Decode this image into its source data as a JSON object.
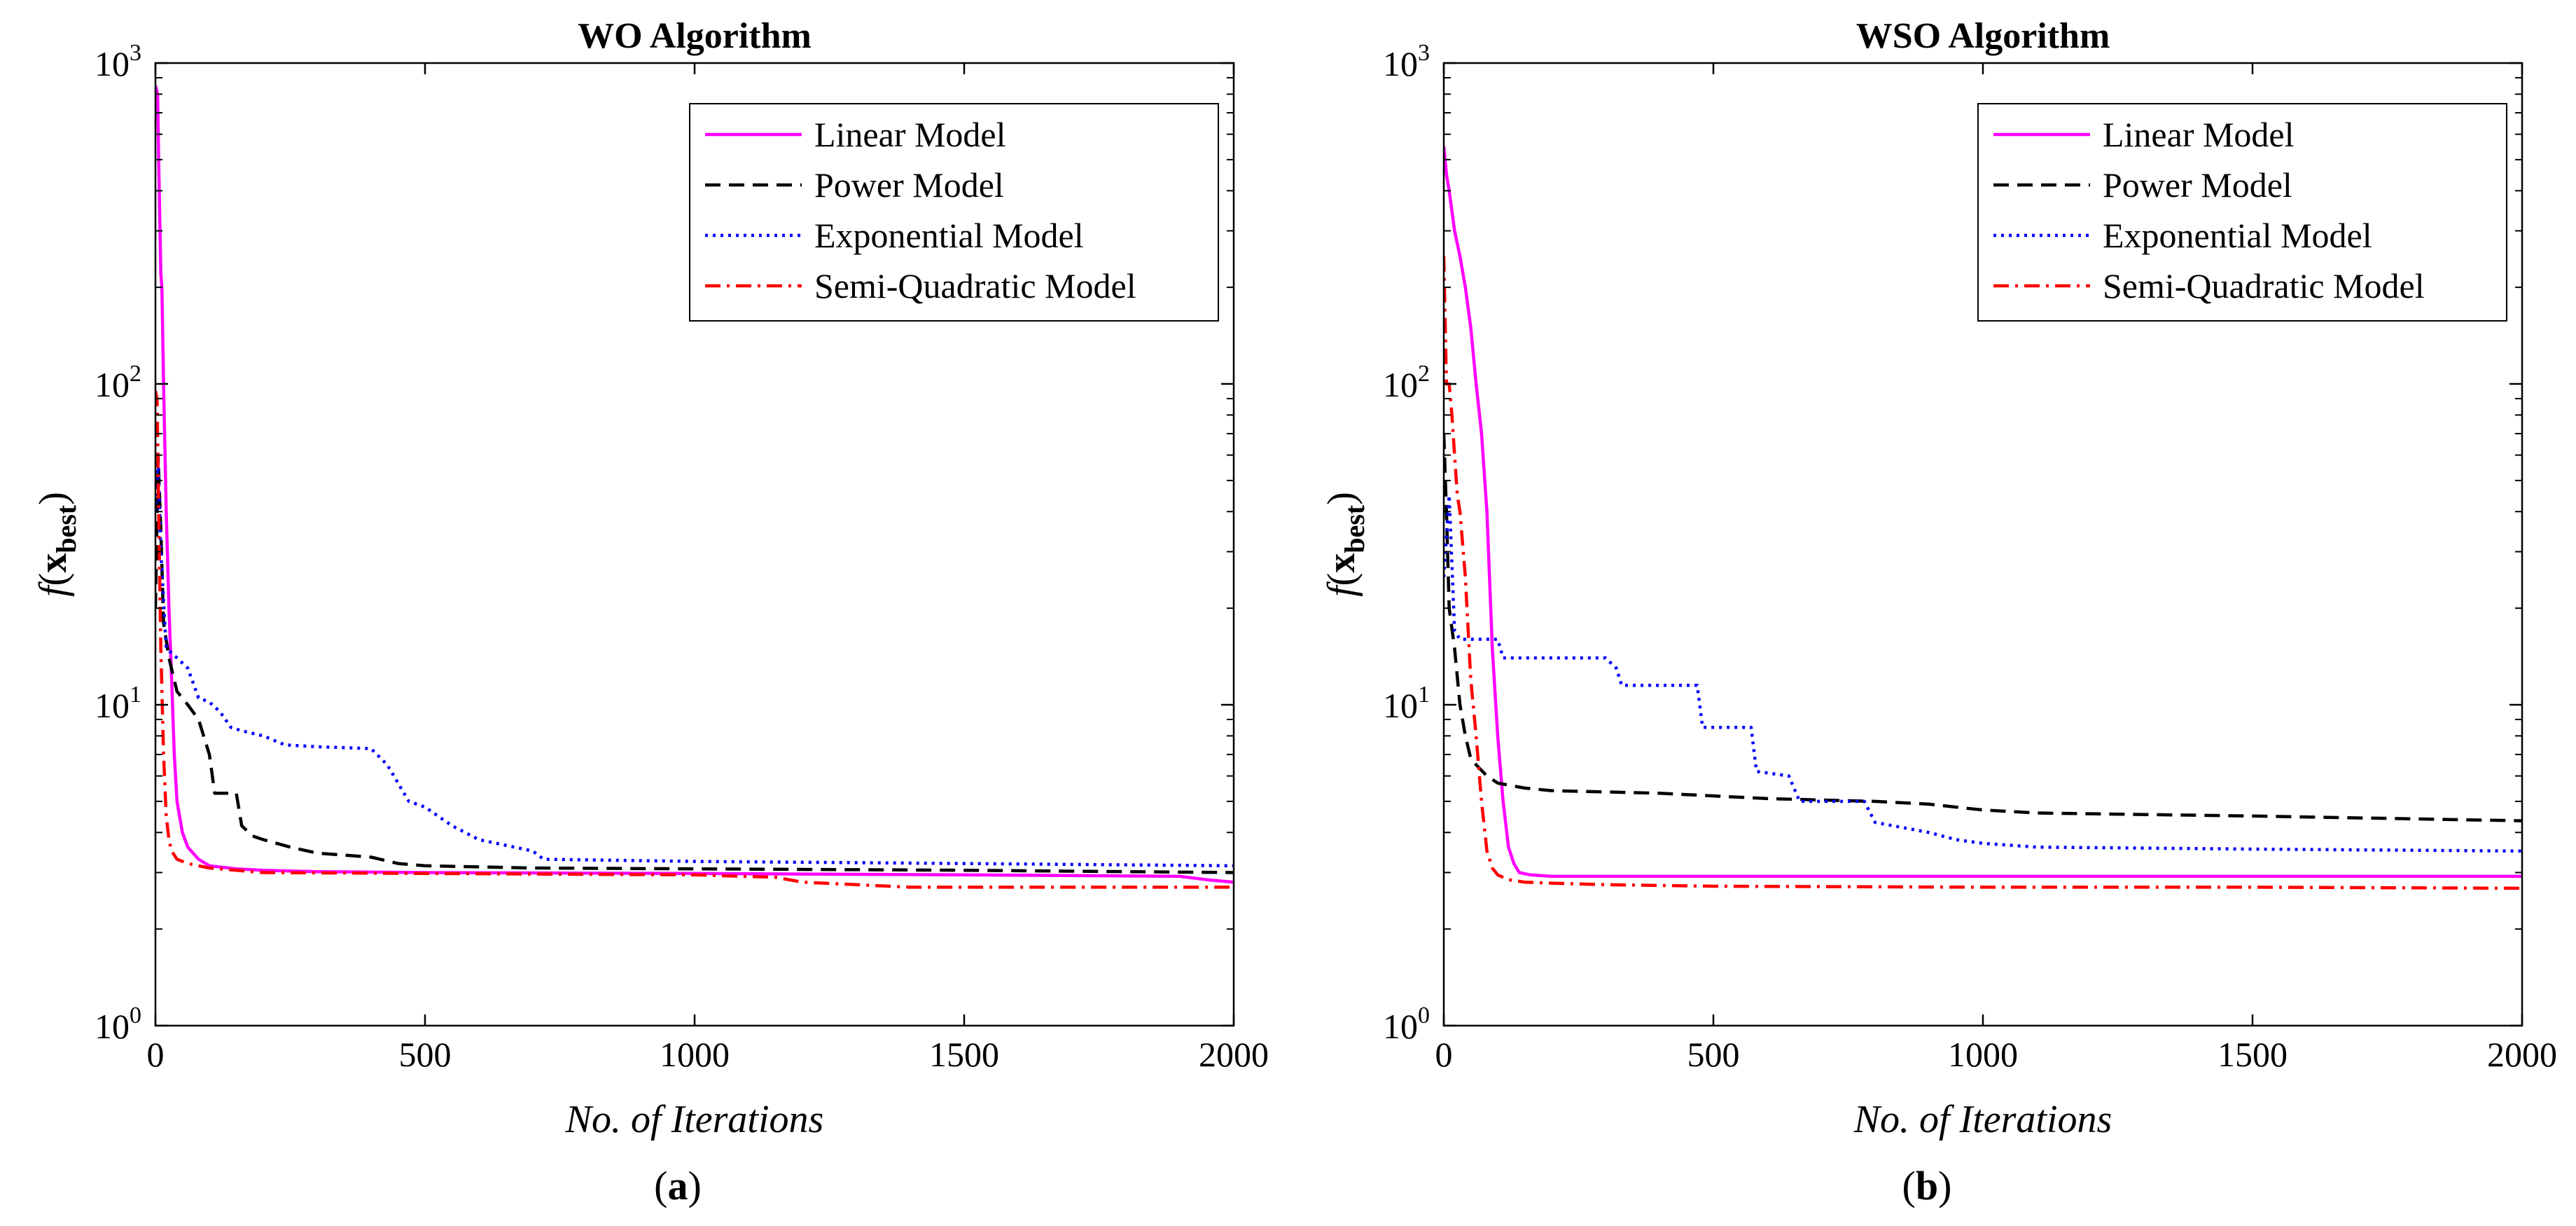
{
  "chart_data": [
    {
      "type": "line",
      "panel_label": "(a)",
      "panel_letter": "a",
      "title": "WO Algorithm",
      "xlabel": "No. of Iterations",
      "ylabel": {
        "func": "f",
        "open": "(",
        "var": "x",
        "sub": "best",
        "close": ")"
      },
      "xlim": [
        0,
        2000
      ],
      "ylim": [
        1,
        1000
      ],
      "yscale": "log",
      "xticks": [
        0,
        500,
        1000,
        1500,
        2000
      ],
      "xtick_labels": [
        "0",
        "500",
        "1000",
        "1500",
        "2000"
      ],
      "yticks": [
        1,
        10,
        100,
        1000
      ],
      "ytick_bases": [
        "10",
        "10",
        "10",
        "10"
      ],
      "ytick_exps": [
        "0",
        "1",
        "2",
        "3"
      ],
      "legend_position": "top-right",
      "series": [
        {
          "name": "Linear Model",
          "color": "#ff00ff",
          "style": "solid",
          "x": [
            0,
            4,
            6,
            10,
            12,
            15,
            20,
            25,
            30,
            35,
            40,
            50,
            60,
            80,
            100,
            150,
            200,
            300,
            500,
            1000,
            1500,
            1900,
            1950,
            2000
          ],
          "y": [
            850,
            800,
            500,
            220,
            200,
            100,
            40,
            20,
            12,
            7,
            5,
            4,
            3.6,
            3.3,
            3.15,
            3.08,
            3.05,
            3.02,
            3.0,
            2.98,
            2.95,
            2.92,
            2.85,
            2.8
          ]
        },
        {
          "name": "Power Model",
          "color": "#000000",
          "style": "dashed",
          "x": [
            0,
            5,
            10,
            15,
            25,
            40,
            60,
            80,
            100,
            110,
            130,
            150,
            160,
            180,
            200,
            250,
            300,
            350,
            400,
            450,
            500,
            700,
            1000,
            1500,
            2000
          ],
          "y": [
            20,
            60,
            35,
            18,
            14,
            11,
            10,
            9,
            7,
            5.3,
            5.3,
            5.3,
            4.2,
            3.9,
            3.8,
            3.6,
            3.45,
            3.4,
            3.35,
            3.2,
            3.15,
            3.1,
            3.08,
            3.05,
            3.0
          ]
        },
        {
          "name": "Exponential Model",
          "color": "#0000ff",
          "style": "dotted",
          "x": [
            0,
            5,
            10,
            20,
            40,
            60,
            80,
            100,
            120,
            140,
            160,
            200,
            240,
            300,
            400,
            430,
            470,
            500,
            550,
            600,
            700,
            720,
            1000,
            1500,
            2000
          ],
          "y": [
            40,
            60,
            30,
            15,
            14,
            13,
            10.5,
            10.2,
            9.5,
            8.5,
            8.3,
            8.0,
            7.5,
            7.4,
            7.3,
            6.5,
            5.0,
            4.8,
            4.2,
            3.8,
            3.5,
            3.3,
            3.25,
            3.2,
            3.15
          ]
        },
        {
          "name": "Semi-Quadratic Model",
          "color": "#ff0000",
          "style": "dashdot",
          "x": [
            0,
            3,
            6,
            10,
            15,
            20,
            25,
            30,
            40,
            60,
            100,
            200,
            500,
            1000,
            1150,
            1200,
            1400,
            1500,
            2000
          ],
          "y": [
            95,
            90,
            40,
            15,
            7,
            4.5,
            3.8,
            3.5,
            3.3,
            3.2,
            3.1,
            3.0,
            2.98,
            2.95,
            2.9,
            2.8,
            2.7,
            2.7,
            2.7
          ]
        }
      ]
    },
    {
      "type": "line",
      "panel_label": "(b)",
      "panel_letter": "b",
      "title": "WSO Algorithm",
      "xlabel": "No. of Iterations",
      "ylabel": {
        "func": "f",
        "open": "(",
        "var": "x",
        "sub": "best",
        "close": ")"
      },
      "xlim": [
        0,
        2000
      ],
      "ylim": [
        1,
        1000
      ],
      "yscale": "log",
      "xticks": [
        0,
        500,
        1000,
        1500,
        2000
      ],
      "xtick_labels": [
        "0",
        "500",
        "1000",
        "1500",
        "2000"
      ],
      "yticks": [
        1,
        10,
        100,
        1000
      ],
      "ytick_bases": [
        "10",
        "10",
        "10",
        "10"
      ],
      "ytick_exps": [
        "0",
        "1",
        "2",
        "3"
      ],
      "legend_position": "top-right",
      "series": [
        {
          "name": "Linear Model",
          "color": "#ff00ff",
          "style": "solid",
          "x": [
            0,
            5,
            10,
            20,
            30,
            40,
            50,
            60,
            70,
            80,
            90,
            100,
            110,
            120,
            130,
            140,
            160,
            200,
            300,
            500,
            1000,
            2000
          ],
          "y": [
            550,
            450,
            400,
            300,
            250,
            200,
            150,
            100,
            70,
            40,
            15,
            8,
            5,
            3.6,
            3.2,
            3.0,
            2.95,
            2.92,
            2.92,
            2.92,
            2.92,
            2.92
          ]
        },
        {
          "name": "Power Model",
          "color": "#000000",
          "style": "dashed",
          "x": [
            0,
            5,
            10,
            20,
            30,
            40,
            50,
            60,
            80,
            100,
            150,
            200,
            300,
            400,
            500,
            600,
            700,
            800,
            900,
            1000,
            1100,
            1500,
            2000
          ],
          "y": [
            70,
            40,
            20,
            15,
            10,
            8,
            6.8,
            6.5,
            6.0,
            5.7,
            5.5,
            5.4,
            5.35,
            5.3,
            5.2,
            5.1,
            5.05,
            5.0,
            4.9,
            4.7,
            4.6,
            4.5,
            4.35
          ]
        },
        {
          "name": "Exponential Model",
          "color": "#0000ff",
          "style": "dotted",
          "x": [
            0,
            10,
            20,
            30,
            60,
            100,
            110,
            120,
            200,
            300,
            320,
            330,
            400,
            470,
            480,
            550,
            570,
            580,
            640,
            660,
            700,
            780,
            800,
            900,
            950,
            1000,
            1100,
            1500,
            2000
          ],
          "y": [
            25,
            45,
            17,
            16,
            16,
            16,
            14,
            14,
            14,
            14,
            13,
            11.5,
            11.5,
            11.5,
            8.5,
            8.5,
            8.5,
            6.2,
            6.0,
            5.0,
            5.0,
            5.0,
            4.3,
            4.0,
            3.8,
            3.7,
            3.6,
            3.55,
            3.5
          ]
        },
        {
          "name": "Semi-Quadratic Model",
          "color": "#ff0000",
          "style": "dashdot",
          "x": [
            0,
            5,
            10,
            15,
            20,
            25,
            30,
            40,
            50,
            60,
            70,
            80,
            90,
            100,
            120,
            150,
            200,
            300,
            500,
            1000,
            1500,
            2000
          ],
          "y": [
            250,
            100,
            100,
            80,
            60,
            45,
            40,
            25,
            12,
            8,
            5,
            3.5,
            3.1,
            2.95,
            2.85,
            2.8,
            2.78,
            2.75,
            2.72,
            2.7,
            2.7,
            2.68
          ]
        }
      ]
    }
  ]
}
